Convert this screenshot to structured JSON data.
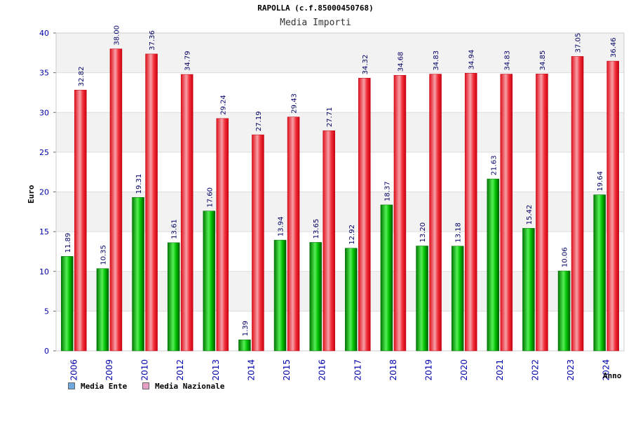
{
  "title": "RAPOLLA (c.f.85000450768)",
  "subtitle": "Media Importi",
  "colors": {
    "ente": "#00b000",
    "nazionale": "#ee1c25",
    "tick_text": "#0000aa",
    "value_text": "#000066"
  },
  "legend": [
    {
      "name": "Media Ente",
      "swatch": "#6fa8dc"
    },
    {
      "name": "Media Nazionale",
      "swatch": "#e6a0c4"
    }
  ],
  "chart_data": {
    "type": "bar",
    "title": "RAPOLLA (c.f.85000450768)",
    "subtitle": "Media Importi",
    "xlabel": "Anno",
    "ylabel": "Euro",
    "ylim": [
      0,
      40
    ],
    "yticks": [
      0,
      5,
      10,
      15,
      20,
      25,
      30,
      35,
      40
    ],
    "grid": true,
    "legend_position": "bottom-left",
    "categories": [
      "2006",
      "2009",
      "2010",
      "2012",
      "2013",
      "2014",
      "2015",
      "2016",
      "2017",
      "2018",
      "2019",
      "2020",
      "2021",
      "2022",
      "2023",
      "2024"
    ],
    "series": [
      {
        "name": "Media Ente",
        "values": [
          11.89,
          10.35,
          19.31,
          13.61,
          17.6,
          1.39,
          13.94,
          13.65,
          12.92,
          18.37,
          13.2,
          13.18,
          21.63,
          15.42,
          10.06,
          19.64
        ],
        "labels": [
          "11.89",
          "10.35",
          "19.31",
          "13.61",
          "17.60",
          "1.39",
          "13.94",
          "13.65",
          "12.92",
          "18.37",
          "13.20",
          "13.18",
          "21.63",
          "15.42",
          "10.06",
          "19.64"
        ]
      },
      {
        "name": "Media Nazionale",
        "values": [
          32.82,
          38.0,
          37.36,
          34.79,
          29.24,
          27.19,
          29.43,
          27.71,
          34.32,
          34.68,
          34.83,
          34.94,
          34.83,
          34.85,
          37.05,
          36.46
        ],
        "labels": [
          "32.82",
          "38.00",
          "37.36",
          "34.79",
          "29.24",
          "27.19",
          "29.43",
          "27.71",
          "34.32",
          "34.68",
          "34.83",
          "34.94",
          "34.83",
          "34.85",
          "37.05",
          "36.46"
        ]
      }
    ]
  }
}
